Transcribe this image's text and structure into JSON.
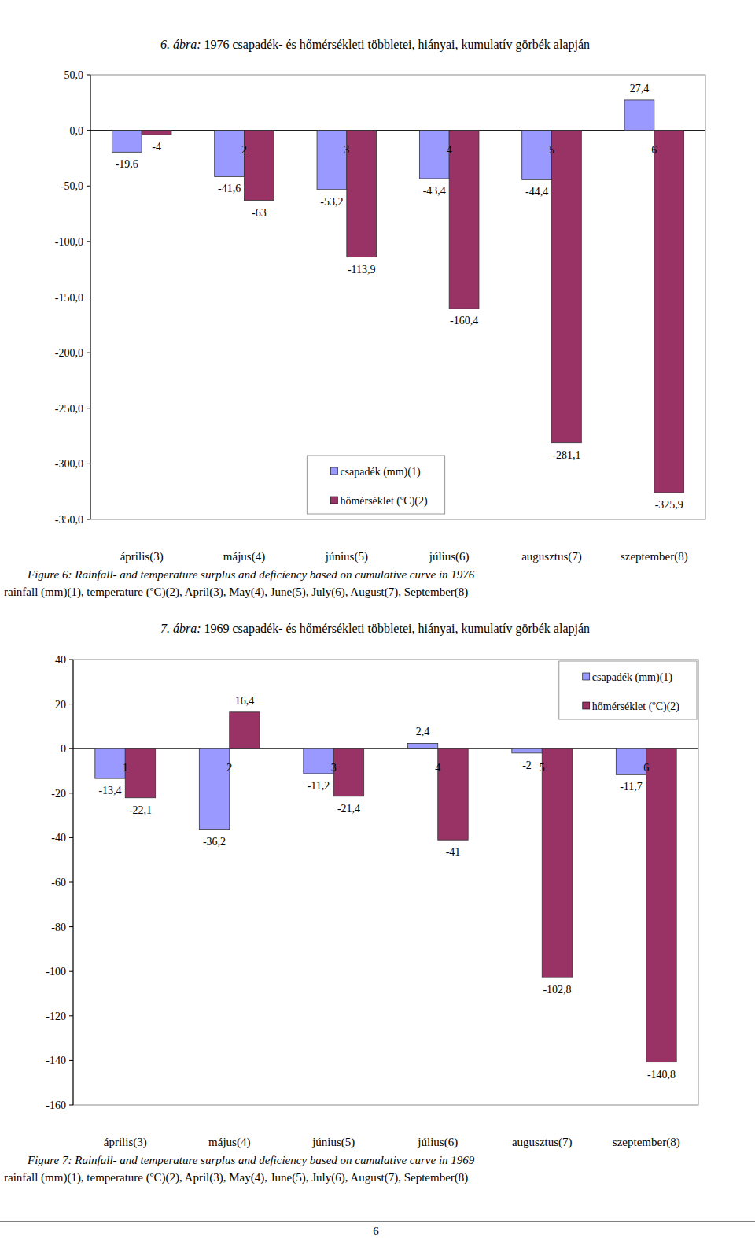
{
  "chart_data": [
    {
      "type": "bar",
      "title_prefix": "6. ábra:",
      "title": "1976 csapadék- és hőmérsékleti többletei, hiányai, kumulatív görbék alapján",
      "categories": [
        "április(3)",
        "május(4)",
        "június(5)",
        "július(6)",
        "augusztus(7)",
        "szeptember(8)"
      ],
      "category_numbers": [
        null,
        "2",
        "3",
        "4",
        "5",
        "6"
      ],
      "series": [
        {
          "name": "csapadék (mm)(1)",
          "color": "#9999ff",
          "values": [
            -19.6,
            -41.6,
            -53.2,
            -43.4,
            -44.4,
            27.4
          ],
          "value_labels": [
            "-19,6",
            "-41,6",
            "-53,2",
            "-43,4",
            "-44,4",
            "27,4"
          ]
        },
        {
          "name": "hőmérséklet (ºC)(2)",
          "color": "#993366",
          "values": [
            -4,
            -63,
            -113.9,
            -160.4,
            -281.1,
            -325.9
          ],
          "value_labels": [
            "-4",
            "-63",
            "-113,9",
            "-160,4",
            "-281,1",
            "-325,9"
          ]
        }
      ],
      "ylim": [
        -350,
        50
      ],
      "yticks": [
        {
          "value": -350,
          "label": "-350,0"
        },
        {
          "value": -300,
          "label": "-300,0"
        },
        {
          "value": -250,
          "label": "-250,0"
        },
        {
          "value": -200,
          "label": "-200,0"
        },
        {
          "value": -150,
          "label": "-150,0"
        },
        {
          "value": -100,
          "label": "-100,0"
        },
        {
          "value": -50,
          "label": "-50,0"
        },
        {
          "value": 0,
          "label": "0,0"
        },
        {
          "value": 50,
          "label": "50,0"
        }
      ],
      "grid": false,
      "legend": "bottom",
      "data_labels": true,
      "caption": "Figure 6: Rainfall- and temperature surplus and deficiency based on cumulative curve in 1976",
      "caption_note": "rainfall (mm)(1), temperature (ºC)(2), April(3), May(4), June(5), July(6), August(7), September(8)"
    },
    {
      "type": "bar",
      "title_prefix": "7. ábra:",
      "title": "1969 csapadék- és hőmérsékleti többletei, hiányai, kumulatív görbék alapján",
      "categories": [
        "április(3)",
        "május(4)",
        "június(5)",
        "július(6)",
        "augusztus(7)",
        "szeptember(8)"
      ],
      "category_numbers": [
        "1",
        "2",
        "3",
        "4",
        "5",
        "6"
      ],
      "series": [
        {
          "name": "csapadék (mm)(1)",
          "color": "#9999ff",
          "values": [
            -13.4,
            -36.2,
            -11.2,
            2.4,
            -2,
            -11.7
          ],
          "value_labels": [
            "-13,4",
            "-36,2",
            "-11,2",
            "2,4",
            "-2",
            "-11,7"
          ]
        },
        {
          "name": "hőmérséklet (ºC)(2)",
          "color": "#993366",
          "values": [
            -22.1,
            16.4,
            -21.4,
            -41,
            -102.8,
            -140.8
          ],
          "value_labels": [
            "-22,1",
            "16,4",
            "-21,4",
            "-41",
            "-102,8",
            "-140,8"
          ]
        }
      ],
      "ylim": [
        -160,
        40
      ],
      "yticks": [
        -160,
        -140,
        -120,
        -100,
        -80,
        -60,
        -40,
        -20,
        0,
        20,
        40
      ],
      "grid": false,
      "legend": "upper right",
      "data_labels": true,
      "caption": "Figure 7: Rainfall- and temperature surplus and deficiency based on cumulative curve in 1969",
      "caption_note": "rainfall (mm)(1), temperature (ºC)(2), April(3), May(4), June(5), July(6), August(7), September(8)"
    }
  ],
  "page": {
    "number": "6"
  }
}
